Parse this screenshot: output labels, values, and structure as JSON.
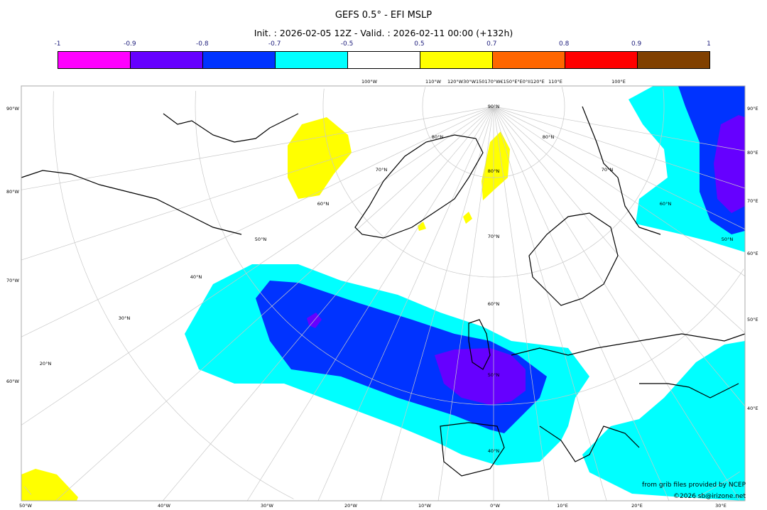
{
  "title": "GEFS 0.5° - EFI MSLP",
  "subtitle": "Init. : 2026-02-05 12Z - Valid. : 2026-02-11 00:00 (+132h)",
  "colorbar": {
    "ticks": [
      "-1",
      "-0.9",
      "-0.8",
      "-0.7",
      "-0.5",
      "0.5",
      "0.7",
      "0.8",
      "0.9",
      "1"
    ],
    "colors": [
      "#ff00ff",
      "#6600ff",
      "#0033ff",
      "#00ffff",
      "#ffffff",
      "#ffff00",
      "#ff6600",
      "#ff0000",
      "#804000"
    ]
  },
  "map": {
    "top_labels": [
      "100°W",
      "110°W",
      "120°W30°W150170°W€150°E°E0°II120°E",
      "110°E",
      "100°E"
    ],
    "left_labels": [
      "90°W",
      "80°W",
      "70°W",
      "60°W"
    ],
    "right_labels": [
      "90°E",
      "80°E",
      "70°E",
      "60°E",
      "50°E",
      "40°E"
    ],
    "bottom_labels": [
      "50°W",
      "40°W",
      "30°W",
      "20°W",
      "10°W",
      "0°W",
      "10°E",
      "20°E",
      "30°E"
    ],
    "lat_labels_center": [
      "90°N",
      "80°N",
      "70°N",
      "60°N",
      "50°N",
      "40°N"
    ],
    "lat_labels_left": [
      "80°N",
      "70°N",
      "60°N",
      "50°N",
      "40°N",
      "30°N",
      "20°N"
    ],
    "lat_labels_right": [
      "80°N",
      "70°N",
      "60°N",
      "50°N"
    ]
  },
  "credits": {
    "line1": "from grib files provided by NCEP",
    "line2": "©2026 sb@irizone.net"
  }
}
